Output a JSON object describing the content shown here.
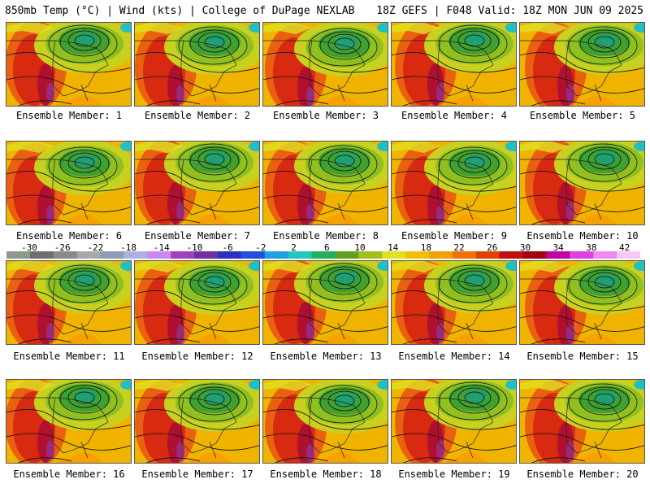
{
  "header": {
    "left": "850mb Temp (°C) | Wind (kts) | College of DuPage NEXLAB",
    "right": "18Z GEFS | F048 Valid: 18Z MON JUN 09 2025"
  },
  "panels": [
    {
      "label": "Ensemble Member: 1"
    },
    {
      "label": "Ensemble Member: 2"
    },
    {
      "label": "Ensemble Member: 3"
    },
    {
      "label": "Ensemble Member: 4"
    },
    {
      "label": "Ensemble Member: 5"
    },
    {
      "label": "Ensemble Member: 6"
    },
    {
      "label": "Ensemble Member: 7"
    },
    {
      "label": "Ensemble Member: 8"
    },
    {
      "label": "Ensemble Member: 9"
    },
    {
      "label": "Ensemble Member: 10"
    },
    {
      "label": "Ensemble Member: 11"
    },
    {
      "label": "Ensemble Member: 12"
    },
    {
      "label": "Ensemble Member: 13"
    },
    {
      "label": "Ensemble Member: 14"
    },
    {
      "label": "Ensemble Member: 15"
    },
    {
      "label": "Ensemble Member: 16"
    },
    {
      "label": "Ensemble Member: 17"
    },
    {
      "label": "Ensemble Member: 18"
    },
    {
      "label": "Ensemble Member: 19"
    },
    {
      "label": "Ensemble Member: 20"
    }
  ],
  "colorbar": {
    "labels": [
      "-30",
      "-26",
      "-22",
      "-18",
      "-14",
      "-10",
      "-6",
      "-2",
      "2",
      "6",
      "10",
      "14",
      "18",
      "22",
      "26",
      "30",
      "34",
      "38",
      "42"
    ],
    "colors": [
      "#8c9a8c",
      "#6e6e6e",
      "#8a8a8a",
      "#a8a8a8",
      "#8f9cb5",
      "#b0b0e0",
      "#cc88ee",
      "#a040c0",
      "#7030a0",
      "#3030c0",
      "#2050e0",
      "#20a0e0",
      "#20c8c0",
      "#20b060",
      "#60a020",
      "#a0c020",
      "#e0e020",
      "#f0c000",
      "#f0a000",
      "#f07000",
      "#e04000",
      "#c01010",
      "#a00010",
      "#c000a0",
      "#e040e0",
      "#f088f0",
      "#f8c8f8"
    ]
  }
}
